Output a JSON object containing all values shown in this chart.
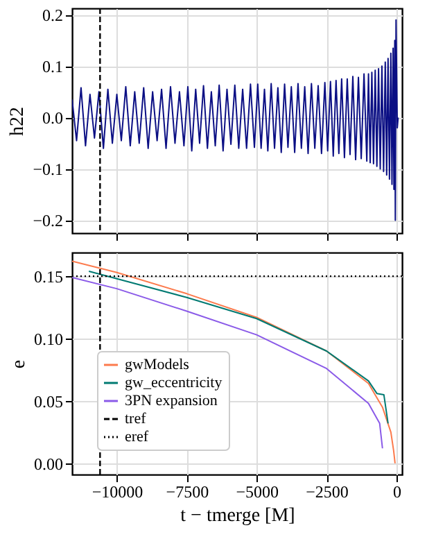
{
  "chart_data": [
    {
      "type": "line",
      "ylabel": "h22",
      "xlim": [
        -11600,
        200
      ],
      "ylim": [
        -0.225,
        0.2125
      ],
      "xticks": [
        -10000,
        -7500,
        -5000,
        -2500,
        0
      ],
      "yticks": [
        {
          "value": -0.2,
          "label": "−0.2"
        },
        {
          "value": -0.1,
          "label": "−0.1"
        },
        {
          "value": 0,
          "label": "0.0"
        },
        {
          "value": 0.1,
          "label": "0.1"
        },
        {
          "value": 0.2,
          "label": "0.2"
        }
      ],
      "tick_labels": "y",
      "grid": true,
      "ref_lines": [
        {
          "axis": "x",
          "value": -10600,
          "color": "#000000",
          "line_style": "dashed"
        }
      ],
      "series": [
        {
          "color": "#0b0f84",
          "x": [
            -11600,
            -11440,
            -11280,
            -11120,
            -10960,
            -10800,
            -10640,
            -10480,
            -10320,
            -10160,
            -10000,
            -9840,
            -9680,
            -9520,
            -9360,
            -9200,
            -9040,
            -8880,
            -8720,
            -8560,
            -8400,
            -8240,
            -8080,
            -7920,
            -7760,
            -7600,
            -7460,
            -7320,
            -7180,
            -7040,
            -6900,
            -6760,
            -6620,
            -6480,
            -6340,
            -6200,
            -6060,
            -5920,
            -5780,
            -5640,
            -5500,
            -5360,
            -5220,
            -5080,
            -4960,
            -4840,
            -4720,
            -4600,
            -4480,
            -4360,
            -4240,
            -4120,
            -4000,
            -3880,
            -3760,
            -3640,
            -3520,
            -3400,
            -3280,
            -3160,
            -3040,
            -2920,
            -2800,
            -2680,
            -2560,
            -2460,
            -2360,
            -2260,
            -2160,
            -2060,
            -1960,
            -1860,
            -1760,
            -1660,
            -1560,
            -1460,
            -1360,
            -1260,
            -1160,
            -1060,
            -1000,
            -940,
            -880,
            -820,
            -760,
            -700,
            -640,
            -580,
            -520,
            -460,
            -400,
            -350,
            -300,
            -250,
            -200,
            -160,
            -120,
            -90,
            -60,
            -40,
            -15,
            30,
            60
          ],
          "values": [
            0.035,
            -0.045,
            0.058,
            -0.055,
            0.045,
            -0.04,
            0.05,
            -0.06,
            0.055,
            -0.05,
            0.045,
            -0.045,
            0.06,
            -0.055,
            0.05,
            -0.05,
            0.058,
            -0.06,
            0.05,
            -0.045,
            0.055,
            -0.06,
            0.06,
            -0.05,
            0.05,
            -0.055,
            0.06,
            -0.065,
            0.055,
            -0.05,
            0.062,
            -0.06,
            0.05,
            -0.055,
            0.063,
            -0.065,
            0.055,
            -0.052,
            0.063,
            -0.06,
            0.055,
            -0.06,
            0.065,
            -0.058,
            0.065,
            -0.06,
            0.055,
            -0.065,
            0.066,
            -0.06,
            0.058,
            -0.068,
            0.065,
            -0.058,
            0.06,
            -0.068,
            0.066,
            -0.06,
            0.06,
            -0.07,
            0.066,
            -0.06,
            0.062,
            -0.07,
            0.068,
            -0.065,
            0.07,
            -0.075,
            0.072,
            -0.07,
            0.075,
            -0.078,
            0.075,
            -0.072,
            0.08,
            -0.082,
            0.078,
            -0.08,
            0.085,
            -0.085,
            0.085,
            -0.088,
            0.088,
            -0.09,
            0.092,
            -0.095,
            0.095,
            -0.1,
            0.1,
            -0.105,
            0.108,
            -0.112,
            0.115,
            -0.12,
            0.125,
            -0.13,
            0.135,
            -0.14,
            0.15,
            -0.2,
            0.19,
            -0.02,
            0.0
          ]
        }
      ]
    },
    {
      "type": "line",
      "xlabel": "t − tmerge [M]",
      "ylabel": "e",
      "xlim": [
        -11600,
        200
      ],
      "ylim": [
        -0.009,
        0.169
      ],
      "xticks": [
        {
          "value": -10000,
          "label": "−10000"
        },
        {
          "value": -7500,
          "label": "−7500"
        },
        {
          "value": -5000,
          "label": "−5000"
        },
        {
          "value": -2500,
          "label": "−2500"
        },
        0
      ],
      "yticks": [
        {
          "value": 0,
          "label": "0.00"
        },
        {
          "value": 0.05,
          "label": "0.05"
        },
        {
          "value": 0.1,
          "label": "0.10"
        },
        {
          "value": 0.15,
          "label": "0.15"
        }
      ],
      "grid": true,
      "legend": "bottom left",
      "ref_lines": [
        {
          "axis": "x",
          "value": -10600,
          "label": "tref",
          "color": "#000000",
          "line_style": "dashed"
        },
        {
          "axis": "y",
          "value": 0.15,
          "label": "eref",
          "color": "#000000",
          "line_style": "dotted"
        }
      ],
      "series": [
        {
          "name": "gwModels",
          "color": "#fc7a4c",
          "x": [
            -11600,
            -10000,
            -7500,
            -5000,
            -2500,
            -1000,
            -500,
            -200,
            -100,
            -50
          ],
          "values": [
            0.162,
            0.153,
            0.136,
            0.117,
            0.09,
            0.064,
            0.045,
            0.025,
            0.01,
            0.0
          ]
        },
        {
          "name": "gw_eccentricity",
          "color": "#007a72",
          "x": [
            -11000,
            -10000,
            -7500,
            -5000,
            -2500,
            -1000,
            -700,
            -450,
            -300
          ],
          "values": [
            0.154,
            0.148,
            0.133,
            0.116,
            0.09,
            0.066,
            0.056,
            0.055,
            0.032
          ]
        },
        {
          "name": "3PN expansion",
          "color": "#8a5ae8",
          "x": [
            -11600,
            -10000,
            -7500,
            -5000,
            -2500,
            -1000,
            -600,
            -500
          ],
          "values": [
            0.149,
            0.14,
            0.122,
            0.103,
            0.076,
            0.048,
            0.032,
            0.012
          ]
        }
      ]
    }
  ]
}
